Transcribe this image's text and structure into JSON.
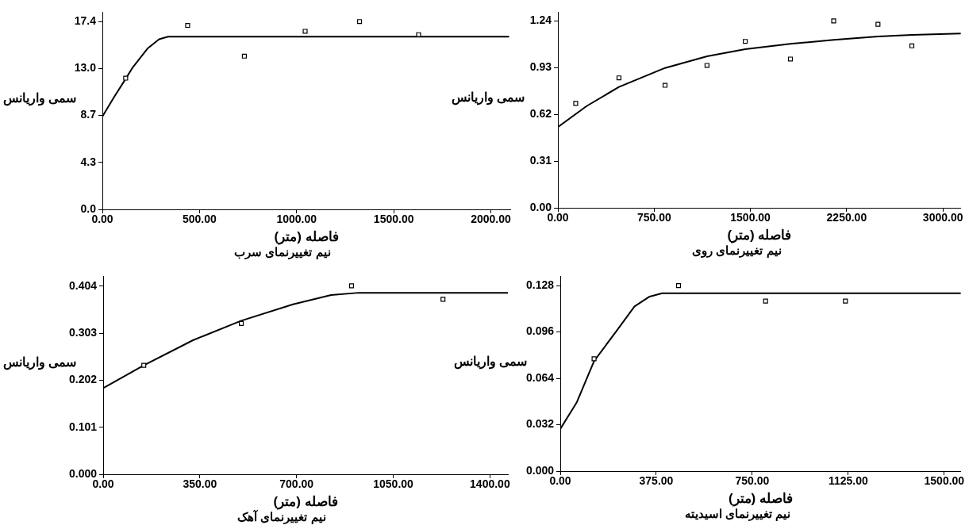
{
  "chart_data": [
    {
      "type": "scatter",
      "title": "نیم تغییرنمای سرب",
      "xlabel": "فاصله (متر)",
      "ylabel": "سمی واریانس",
      "grid": false,
      "xlim": [
        0,
        2100
      ],
      "xticks": [
        {
          "value": 0,
          "label": "0.00"
        },
        {
          "value": 500,
          "label": "500.00"
        },
        {
          "value": 1000,
          "label": "1000.00"
        },
        {
          "value": 1500,
          "label": "1500.00"
        },
        {
          "value": 2000,
          "label": "2000.00"
        }
      ],
      "ylim": [
        0,
        18.3
      ],
      "yticks": [
        {
          "value": 0,
          "label": "0.0"
        },
        {
          "value": 4.35,
          "label": "4.3"
        },
        {
          "value": 8.7,
          "label": "8.7"
        },
        {
          "value": 13.05,
          "label": "13.0"
        },
        {
          "value": 17.4,
          "label": "17.4"
        }
      ],
      "series": [
        {
          "type": "line",
          "marker": "none",
          "color": "#000000",
          "x": [
            0,
            60,
            120,
            156,
            232,
            292,
            338,
            2094
          ],
          "values": [
            8.6,
            10.4,
            12.1,
            13.15,
            14.9,
            15.77,
            16.0,
            16.0
          ]
        },
        {
          "type": "scatter",
          "marker": "square",
          "color": "#000000",
          "x": [
            120,
            439,
            731,
            1044,
            1324,
            1628
          ],
          "values": [
            12.16,
            17.05,
            14.2,
            16.5,
            17.4,
            16.19
          ]
        }
      ]
    },
    {
      "type": "scatter",
      "title": "نیم تغییرنمای روی",
      "xlabel": "فاصله (متر)",
      "ylabel": "سمی واریانس",
      "grid": false,
      "xlim": [
        0,
        3140
      ],
      "xticks": [
        {
          "value": 0,
          "label": "0.00"
        },
        {
          "value": 750,
          "label": "750.00"
        },
        {
          "value": 1500,
          "label": "1500.00"
        },
        {
          "value": 2250,
          "label": "2250.00"
        },
        {
          "value": 3000,
          "label": "3000.00"
        }
      ],
      "ylim": [
        0,
        1.3
      ],
      "yticks": [
        {
          "value": 0,
          "label": "0.00"
        },
        {
          "value": 0.31,
          "label": "0.31"
        },
        {
          "value": 0.62,
          "label": "0.62"
        },
        {
          "value": 0.93,
          "label": "0.93"
        },
        {
          "value": 1.24,
          "label": "1.24"
        }
      ],
      "series": [
        {
          "type": "line",
          "marker": "none",
          "color": "#000000",
          "x": [
            0,
            224,
            476,
            835,
            1162,
            1460,
            1812,
            2149,
            2494,
            2758,
            3140
          ],
          "values": [
            0.536,
            0.675,
            0.802,
            0.928,
            1.005,
            1.053,
            1.088,
            1.115,
            1.137,
            1.148,
            1.157
          ]
        },
        {
          "type": "scatter",
          "marker": "square",
          "color": "#000000",
          "x": [
            139,
            476,
            835,
            1162,
            1460,
            1812,
            2149,
            2494,
            2758
          ],
          "values": [
            0.693,
            0.862,
            0.813,
            0.945,
            1.104,
            0.987,
            1.24,
            1.218,
            1.075
          ]
        }
      ]
    },
    {
      "type": "scatter",
      "title": "نیم تغییرنمای آهک",
      "xlabel": "فاصله (متر)",
      "ylabel": "سمی واریانس",
      "grid": false,
      "xlim": [
        0,
        1465
      ],
      "xticks": [
        {
          "value": 0,
          "label": "0.00"
        },
        {
          "value": 350,
          "label": "350.00"
        },
        {
          "value": 700,
          "label": "700.00"
        },
        {
          "value": 1050,
          "label": "1050.00"
        },
        {
          "value": 1400,
          "label": "1400.00"
        }
      ],
      "ylim": [
        0,
        0.426
      ],
      "yticks": [
        {
          "value": 0,
          "label": "0.000"
        },
        {
          "value": 0.101,
          "label": "0.101"
        },
        {
          "value": 0.202,
          "label": "0.202"
        },
        {
          "value": 0.303,
          "label": "0.303"
        },
        {
          "value": 0.404,
          "label": "0.404"
        }
      ],
      "series": [
        {
          "type": "line",
          "marker": "none",
          "color": "#000000",
          "x": [
            0,
            147,
            325,
            500,
            687,
            825,
            925,
            1465
          ],
          "values": [
            0.185,
            0.234,
            0.288,
            0.33,
            0.365,
            0.385,
            0.39,
            0.39
          ]
        },
        {
          "type": "scatter",
          "marker": "square",
          "color": "#000000",
          "x": [
            147,
            500,
            899,
            1230
          ],
          "values": [
            0.234,
            0.324,
            0.405,
            0.376
          ]
        }
      ]
    },
    {
      "type": "scatter",
      "title": "نیم تغییرنمای اسیدیته",
      "xlabel": "فاصله (متر)",
      "ylabel": "سمی واریانس",
      "grid": false,
      "xlim": [
        0,
        1565
      ],
      "xticks": [
        {
          "value": 0,
          "label": "0.00"
        },
        {
          "value": 375,
          "label": "375.00"
        },
        {
          "value": 750,
          "label": "750.00"
        },
        {
          "value": 1125,
          "label": "1125.00"
        },
        {
          "value": 1500,
          "label": "1500.00"
        }
      ],
      "ylim": [
        0,
        0.1346
      ],
      "yticks": [
        {
          "value": 0,
          "label": "0.000"
        },
        {
          "value": 0.032,
          "label": "0.032"
        },
        {
          "value": 0.064,
          "label": "0.064"
        },
        {
          "value": 0.096,
          "label": "0.096"
        },
        {
          "value": 0.128,
          "label": "0.128"
        }
      ],
      "series": [
        {
          "type": "line",
          "marker": "none",
          "color": "#000000",
          "x": [
            0,
            64,
            132,
            219,
            290,
            349,
            398,
            1565
          ],
          "values": [
            0.029,
            0.0473,
            0.0759,
            0.0965,
            0.1136,
            0.1204,
            0.1227,
            0.1227
          ]
        },
        {
          "type": "scatter",
          "marker": "square",
          "color": "#000000",
          "x": [
            132,
            462,
            802,
            1114
          ],
          "values": [
            0.0775,
            0.128,
            0.1173,
            0.1173
          ]
        }
      ]
    }
  ]
}
